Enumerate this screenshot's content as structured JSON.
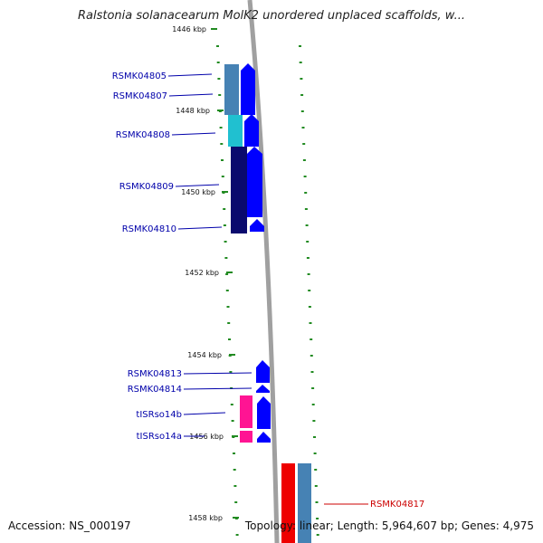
{
  "title": "Ralstonia solanacearum MolK2 unordered unplaced scaffolds, w...",
  "footer": {
    "accession": "Accession: NS_000197",
    "summary": "Topology: linear; Length: 5,964,607 bp; Genes: 4,975"
  },
  "ticks": [
    "1446 kbp",
    "1448 kbp",
    "1450 kbp",
    "1452 kbp",
    "1454 kbp",
    "1456 kbp",
    "1458 kbp"
  ],
  "genes": [
    {
      "name": "RSMK04805",
      "color": "#0000aa",
      "strand": "reverse"
    },
    {
      "name": "RSMK04807",
      "color": "#0000aa",
      "strand": "reverse"
    },
    {
      "name": "RSMK04808",
      "color": "#0000aa",
      "strand": "reverse"
    },
    {
      "name": "RSMK04809",
      "color": "#0000aa",
      "strand": "reverse"
    },
    {
      "name": "RSMK04810",
      "color": "#0000aa",
      "strand": "reverse"
    },
    {
      "name": "RSMK04813",
      "color": "#0000aa",
      "strand": "reverse"
    },
    {
      "name": "RSMK04814",
      "color": "#0000aa",
      "strand": "reverse"
    },
    {
      "name": "tISRso14b",
      "color": "#0000aa",
      "strand": "reverse"
    },
    {
      "name": "tISRso14a",
      "color": "#0000aa",
      "strand": "reverse"
    },
    {
      "name": "RSMK04817",
      "color": "#cc0000",
      "strand": "forward"
    }
  ],
  "colors": {
    "cds": "#0000ff",
    "cog_blue": "#4682b4",
    "cog_cyan": "#20c0d0",
    "cog_navy": "#0a0a6e",
    "trna": "#ff1493",
    "forward": "#ee0000",
    "backbone": "#999999",
    "tick": "#228b22"
  }
}
